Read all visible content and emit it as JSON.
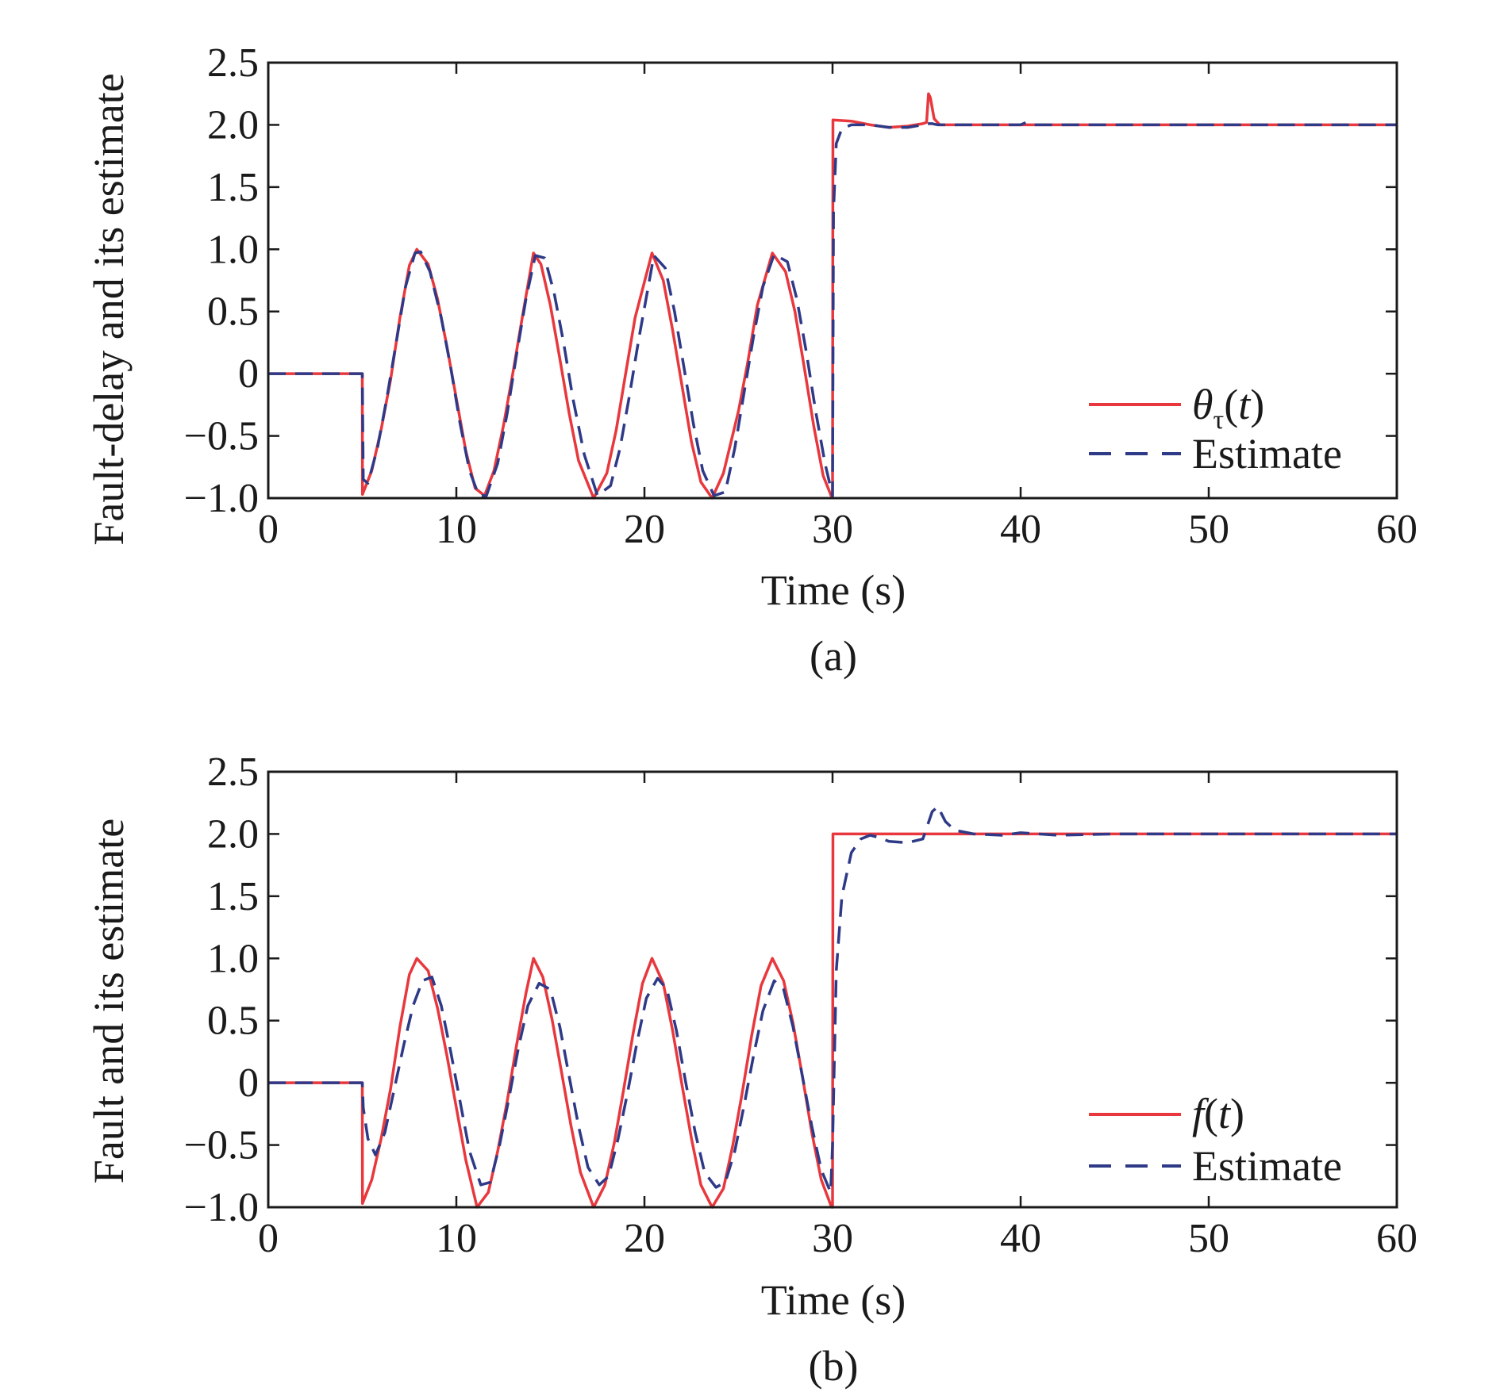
{
  "figure": {
    "colors": {
      "actual": "#e8383d",
      "estimate": "#2e3a87",
      "axis": "#1a1a1a"
    }
  },
  "chart_data": [
    {
      "type": "line",
      "caption": "(a)",
      "xlabel": "Time (s)",
      "ylabel": "Fault-delay and its estimate",
      "xlim": [
        0,
        60
      ],
      "ylim": [
        -1.0,
        2.5
      ],
      "xticks": [
        0,
        10,
        20,
        30,
        40,
        50,
        60
      ],
      "xtick_labels": [
        "0",
        "10",
        "20",
        "30",
        "40",
        "50",
        "60"
      ],
      "yticks": [
        -1.0,
        -0.5,
        0,
        0.5,
        1.0,
        1.5,
        2.0,
        2.5
      ],
      "ytick_labels": [
        "−1.0",
        "−0.5",
        "0",
        "0.5",
        "1.0",
        "1.5",
        "2.0",
        "2.5"
      ],
      "grid": false,
      "legend_position": "bottom-right",
      "legend": {
        "actual": {
          "base": "θ",
          "sub": "τ",
          "rest": "(",
          "var": "t",
          "close": ")"
        },
        "estimate": "Estimate"
      },
      "series": [
        {
          "style": "solid",
          "x": [
            0,
            5,
            5.01,
            5.5,
            6,
            6.5,
            7,
            7.5,
            7.9,
            8.5,
            9,
            9.5,
            10,
            10.5,
            11,
            11.5,
            12,
            12.5,
            13,
            13.5,
            14.1,
            14.5,
            15,
            15.5,
            16,
            16.5,
            17.3,
            18,
            18.5,
            19,
            19.5,
            20.4,
            21,
            21.5,
            22,
            22.5,
            23,
            23.6,
            24.2,
            25,
            25.5,
            26,
            26.8,
            27.5,
            28,
            28.5,
            29,
            29.5,
            29.95,
            30,
            30.02,
            31,
            32,
            33,
            34,
            34.8,
            35.0,
            35.1,
            35.2,
            35.4,
            35.7,
            36,
            38,
            40,
            45,
            50,
            55,
            60
          ],
          "y": [
            0,
            0,
            -0.97,
            -0.78,
            -0.45,
            -0.05,
            0.45,
            0.87,
            1.0,
            0.88,
            0.6,
            0.22,
            -0.2,
            -0.62,
            -0.92,
            -0.98,
            -0.78,
            -0.42,
            0.0,
            0.45,
            0.97,
            0.88,
            0.55,
            0.12,
            -0.32,
            -0.7,
            -1.0,
            -0.8,
            -0.45,
            0.0,
            0.45,
            0.97,
            0.75,
            0.35,
            -0.1,
            -0.55,
            -0.87,
            -1.0,
            -0.8,
            -0.3,
            0.1,
            0.55,
            0.97,
            0.82,
            0.5,
            0.05,
            -0.42,
            -0.82,
            -0.99,
            -0.99,
            2.04,
            2.03,
            2.0,
            1.98,
            1.99,
            2.01,
            2.02,
            2.25,
            2.22,
            2.05,
            2.0,
            2.0,
            2.0,
            2.0,
            2.0,
            2.0,
            2.0,
            2.0
          ]
        },
        {
          "name": "Estimate",
          "style": "dashed",
          "x": [
            0,
            5,
            5.05,
            5.3,
            5.8,
            6.3,
            6.8,
            7.3,
            7.8,
            8.1,
            8.6,
            9.2,
            9.7,
            10.2,
            10.7,
            11.2,
            11.6,
            12.2,
            12.7,
            13.2,
            13.7,
            14.2,
            14.7,
            15.2,
            15.7,
            16.2,
            16.8,
            17.5,
            18.2,
            18.7,
            19.2,
            19.7,
            20.5,
            21.1,
            21.6,
            22.1,
            22.6,
            23.1,
            23.7,
            24.3,
            24.8,
            25.3,
            25.8,
            26.3,
            26.9,
            27.6,
            28.1,
            28.6,
            29.1,
            29.6,
            30.0,
            30.05,
            30.2,
            30.5,
            31,
            32,
            33,
            34,
            34.8,
            35.0,
            35.3,
            35.6,
            36,
            38,
            40,
            40.3,
            40.6,
            41,
            45,
            50,
            55,
            60
          ],
          "y": [
            0,
            0,
            -0.85,
            -0.88,
            -0.6,
            -0.2,
            0.25,
            0.7,
            0.97,
            0.98,
            0.82,
            0.45,
            0.05,
            -0.4,
            -0.78,
            -0.98,
            -0.98,
            -0.72,
            -0.32,
            0.15,
            0.6,
            0.95,
            0.93,
            0.65,
            0.25,
            -0.2,
            -0.65,
            -0.98,
            -0.9,
            -0.6,
            -0.18,
            0.28,
            0.95,
            0.85,
            0.5,
            0.05,
            -0.4,
            -0.78,
            -0.98,
            -0.95,
            -0.6,
            -0.15,
            0.3,
            0.7,
            0.96,
            0.9,
            0.6,
            0.18,
            -0.3,
            -0.72,
            -0.98,
            1.3,
            1.85,
            1.97,
            2.0,
            2.0,
            1.98,
            1.98,
            2.0,
            2.01,
            2.01,
            2.0,
            2.0,
            2.0,
            2.0,
            2.02,
            2.0,
            2.0,
            2.0,
            2.0,
            2.0,
            2.0
          ]
        }
      ]
    },
    {
      "type": "line",
      "caption": "(b)",
      "xlabel": "Time (s)",
      "ylabel": "Fault and its estimate",
      "xlim": [
        0,
        60
      ],
      "ylim": [
        -1.0,
        2.5
      ],
      "xticks": [
        0,
        10,
        20,
        30,
        40,
        50,
        60
      ],
      "xtick_labels": [
        "0",
        "10",
        "20",
        "30",
        "40",
        "50",
        "60"
      ],
      "yticks": [
        -1.0,
        -0.5,
        0,
        0.5,
        1.0,
        1.5,
        2.0,
        2.5
      ],
      "ytick_labels": [
        "−1.0",
        "−0.5",
        "0",
        "0.5",
        "1.0",
        "1.5",
        "2.0",
        "2.5"
      ],
      "grid": false,
      "legend_position": "bottom-right",
      "legend": {
        "actual": {
          "base": "f",
          "sub": "",
          "rest": "(",
          "var": "t",
          "close": ")"
        },
        "estimate": "Estimate"
      },
      "series": [
        {
          "style": "solid",
          "x": [
            0,
            5,
            5.01,
            5.5,
            6,
            6.5,
            7,
            7.5,
            7.9,
            8.5,
            9,
            9.5,
            10,
            10.5,
            11.1,
            11.7,
            12.2,
            12.7,
            13.2,
            13.7,
            14.1,
            14.6,
            15.1,
            15.6,
            16.1,
            16.6,
            17.3,
            17.9,
            18.4,
            18.9,
            19.4,
            19.9,
            20.4,
            21,
            21.5,
            22,
            22.5,
            23,
            23.6,
            24.2,
            24.7,
            25.2,
            25.7,
            26.2,
            26.8,
            27.4,
            27.9,
            28.4,
            28.9,
            29.4,
            29.95,
            30,
            30.02,
            35,
            40,
            45,
            50,
            55,
            60
          ],
          "y": [
            0,
            0,
            -0.97,
            -0.78,
            -0.45,
            -0.05,
            0.45,
            0.87,
            1.0,
            0.9,
            0.6,
            0.22,
            -0.2,
            -0.62,
            -1.0,
            -0.88,
            -0.55,
            -0.15,
            0.3,
            0.72,
            1.0,
            0.85,
            0.5,
            0.08,
            -0.35,
            -0.72,
            -1.0,
            -0.82,
            -0.48,
            -0.05,
            0.4,
            0.8,
            1.0,
            0.8,
            0.42,
            -0.02,
            -0.45,
            -0.82,
            -1.0,
            -0.85,
            -0.5,
            -0.08,
            0.38,
            0.78,
            1.0,
            0.82,
            0.48,
            0.05,
            -0.4,
            -0.78,
            -1.0,
            -1.0,
            2.0,
            2.0,
            2.0,
            2.0,
            2.0,
            2.0,
            2.0
          ]
        },
        {
          "name": "Estimate",
          "style": "dashed",
          "x": [
            0,
            5,
            5.05,
            5.3,
            5.7,
            6.2,
            6.7,
            7.2,
            7.7,
            8.2,
            8.7,
            9.2,
            9.7,
            10.2,
            10.7,
            11.3,
            11.8,
            12.3,
            12.8,
            13.3,
            13.8,
            14.4,
            15.0,
            15.5,
            16.0,
            16.5,
            17.0,
            17.6,
            18.1,
            18.6,
            19.1,
            19.6,
            20.1,
            20.7,
            21.2,
            21.7,
            22.2,
            22.7,
            23.2,
            23.8,
            24.3,
            24.8,
            25.3,
            25.8,
            26.3,
            26.9,
            27.4,
            27.9,
            28.4,
            28.9,
            29.4,
            29.9,
            30.0,
            30.2,
            30.5,
            31,
            31.5,
            32,
            32.5,
            33,
            34,
            34.8,
            35.3,
            35.6,
            36,
            36.5,
            37.5,
            39,
            40,
            42,
            45,
            50,
            55,
            60
          ],
          "y": [
            0,
            0,
            -0.2,
            -0.45,
            -0.58,
            -0.4,
            -0.05,
            0.3,
            0.62,
            0.82,
            0.85,
            0.62,
            0.25,
            -0.15,
            -0.55,
            -0.82,
            -0.8,
            -0.5,
            -0.12,
            0.28,
            0.62,
            0.8,
            0.75,
            0.45,
            0.05,
            -0.35,
            -0.68,
            -0.82,
            -0.75,
            -0.45,
            -0.08,
            0.32,
            0.68,
            0.84,
            0.75,
            0.42,
            0.0,
            -0.4,
            -0.72,
            -0.84,
            -0.8,
            -0.55,
            -0.18,
            0.22,
            0.58,
            0.82,
            0.75,
            0.45,
            0.05,
            -0.35,
            -0.7,
            -0.88,
            -0.5,
            0.9,
            1.5,
            1.85,
            1.96,
            1.99,
            1.97,
            1.94,
            1.93,
            1.96,
            2.18,
            2.22,
            2.1,
            2.03,
            2.0,
            1.99,
            2.01,
            1.99,
            2.0,
            2.0,
            2.0,
            2.0
          ]
        }
      ]
    }
  ]
}
